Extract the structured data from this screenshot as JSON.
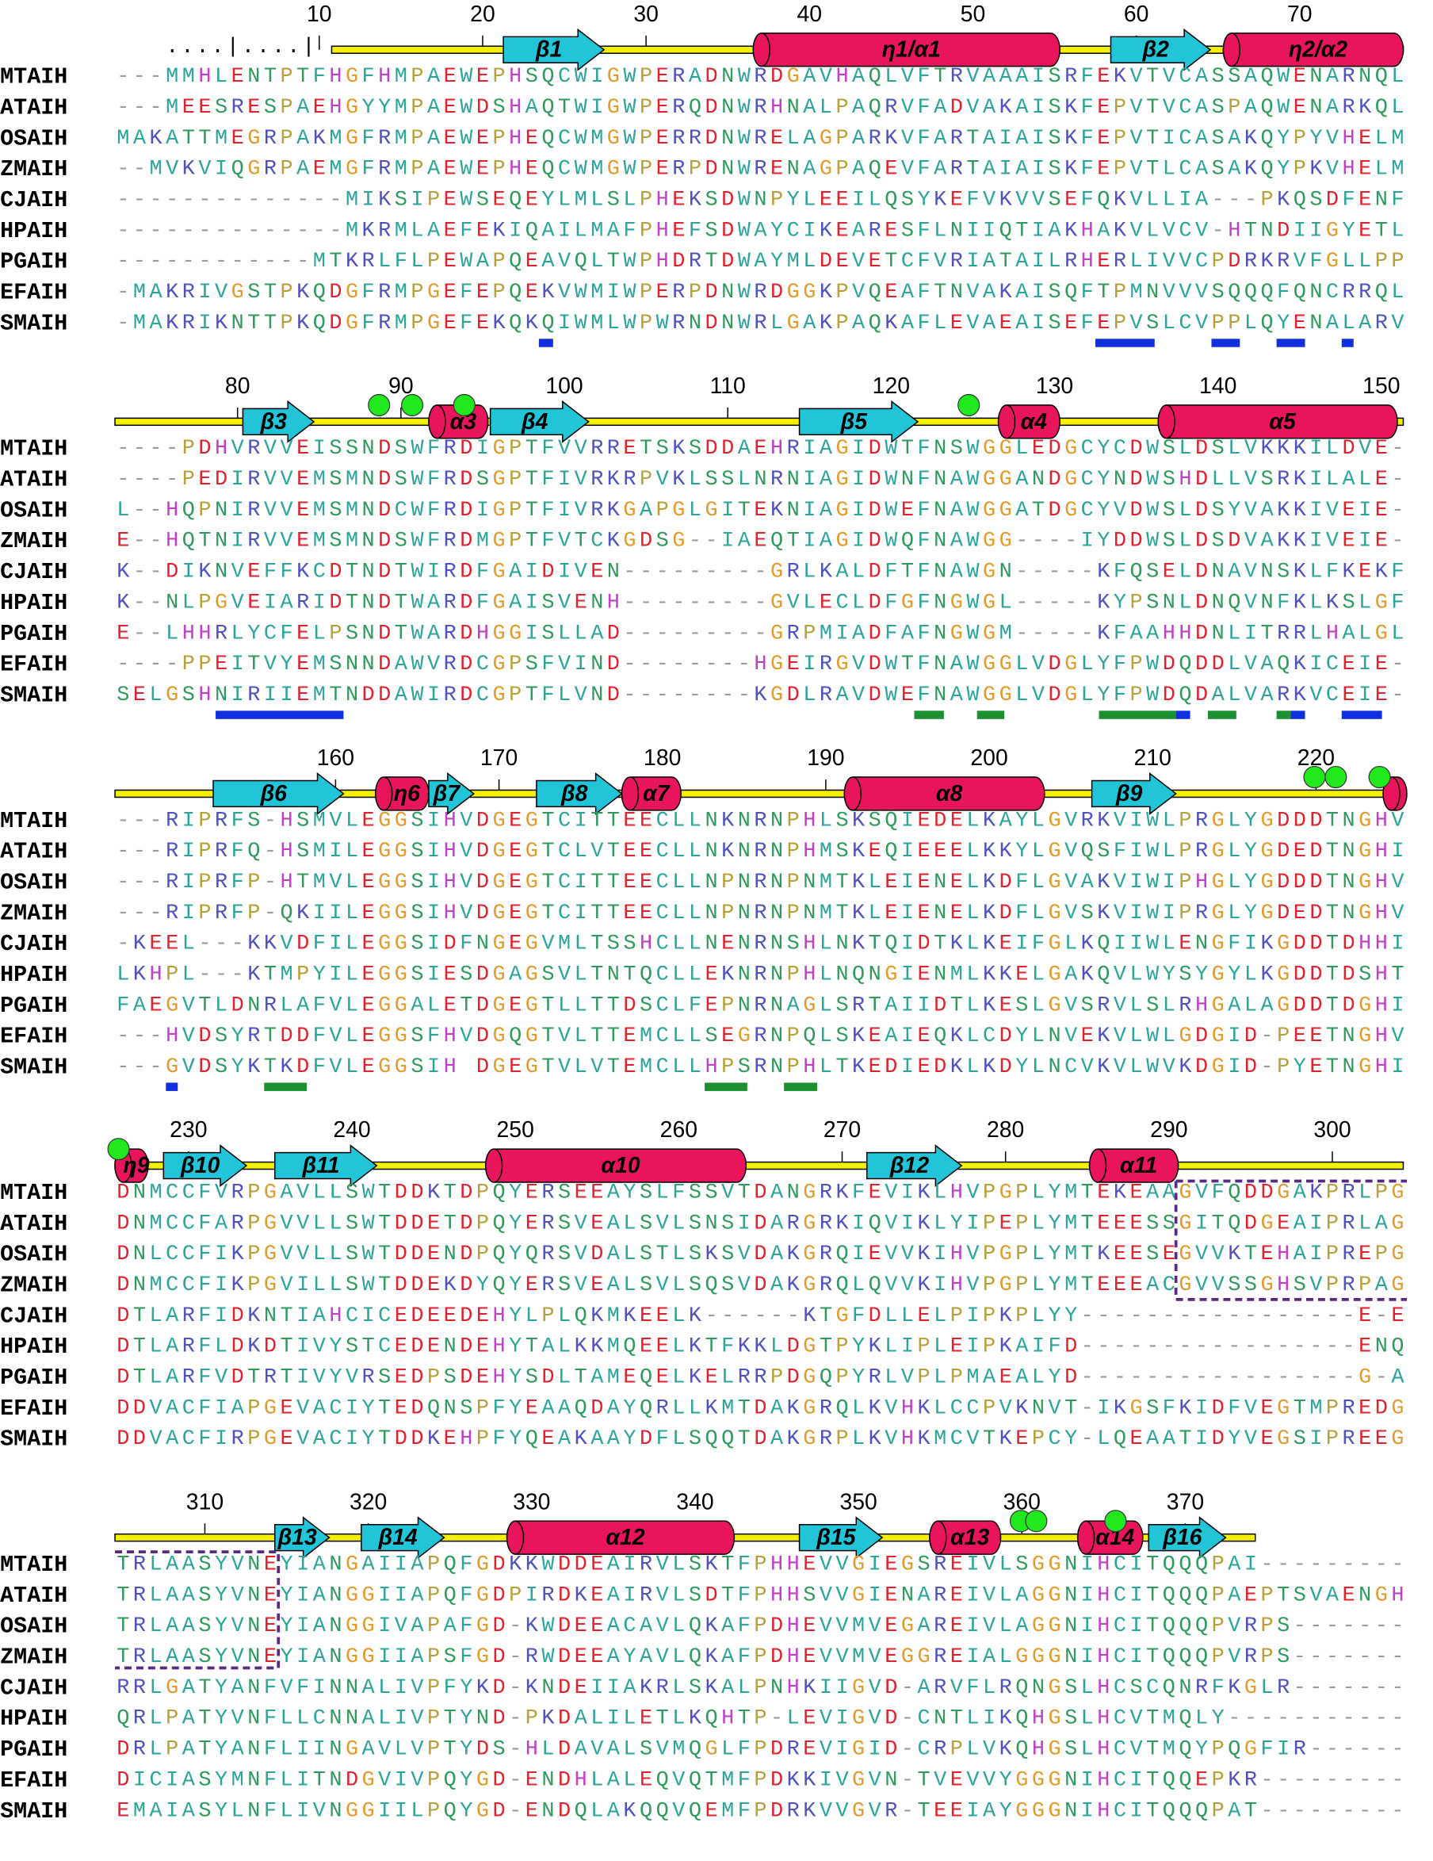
{
  "ruler_marks": "....|....|",
  "names": [
    "MTAIH",
    "ATAIH",
    "OSAIH",
    "ZMAIH",
    "CJAIH",
    "HPAIH",
    "PGAIH",
    "EFAIH",
    "SMAIH"
  ],
  "blocks": [
    {
      "ruler": [
        10,
        20,
        30,
        40,
        50,
        60,
        70
      ],
      "structure": [
        "β1",
        "η1/α1",
        "β2",
        "η2/α2"
      ],
      "sequences": [
        "---MMHLENTPTFHGFHMPAEWEPHSQCWIGWPERADNWRDGAVHAQLVFTRVAAAISRFEKVTVCASSAQWENARNQL",
        "---MEESRESPAEHGYYMPAEWDSHAQTWIGWPERQDNWRHNALPAQRVFADVAKAISKFEPVTVCASPAQWENARKQL",
        "MAKATTMEGRPAKMGFRMPAEWEPHEQCWMGWPERRDNWRELAGPARKVFARTAIAISKFEPVTICASAKQYPYVHELM",
        "--MVKVIQGRPAEMGFRMPAEWEPHEQCWMGWPERPDNWRENAGPAQEVFARTAIAISKFEPVTLCASAKQYPKVHELM",
        "--------------MIKSIPEWSEQEYLMLSLPHEKSDWNPYLEEILQSYKEFVKVVSEFQKVLLIA---PKQSDFENF",
        "--------------MKRMLAEFEKIQAILMAFPHEFSDWAYCIKEARESFLNIIQTIAKHAKVLVCV-HTNDIIGYETL",
        "------------MTKRLFLPEWAPQEAVQLTWPHDRTDWAYMLDEVETCFVRIATAILRHERLIVVCPDRKRVFGLLPP",
        "-MAKRIVGSTPKQDGFRMPGEFEPQEKVWMIWPERPDNWRDGGKPVQEAFTNVAKAISQFTPMNVVVSQQQFQNCRRQL",
        "-MAKRIKNTTPKQDGFRMPGEFEKQKQIWMLWPWRNDNWRLGAKPAQKAFLEVAEAISEFEPVSLCVPPLQYENALARV"
      ]
    },
    {
      "ruler": [
        80,
        90,
        100,
        110,
        120,
        130,
        140,
        150
      ],
      "structure": [
        "β3",
        "α3",
        "β4",
        "β5",
        "α4",
        "α5"
      ],
      "sequences": [
        "----PDHVRVVEISSNDSWFRDIGPTFVVRRETSKSDDAEHRIAGIDWTFNSWGGLEDGCYCDWSLDSLVKKKILDVE-",
        "----PEDIRVVEMSMNDSWFRDSGPTFIVRKRPVKLSSLNRNIAGIDWNFNAWGGANDGCYNDWSHDLLVSRKILALE-",
        "L--HQPNIRVVEMSMNDCWFRDIGPTFIVRKGAPGLGITEKNIAGIDWEFNAWGGATDGCYVDWSLDSYVAKKIVEIE-",
        "E--HQTNIRVVEMSMNDSWFRDMGPTFVTCKGDSG--IAEQTIAGIDWQFNAWGG----IYDDWSLDSDVAKKIVEIE-",
        "K--DIKNVEFFKCDTNDTWIRDFGAIDIVEN---------GRLKALDFTFNAWGN-----KFQSELDNAVNSKLFKEKF",
        "K--NLPGVEIARIDTNDTWARDFGAISVENH---------GVLECLDFGFNGWGL-----KYPSNLDNQVNFKLKSLGF",
        "E--LHHRLYCFELPSNDTWARDHGGISLLAD---------GRPMIADFAFNGWGM-----KFAAHHDNLITRRLHALGL",
        "----PPEITVYEMSNNDAWVRDCGPSFVIND--------HGEIRGVDWTFNAWGGLVDGLYFPWDQDDLVAQKICEIE-",
        "SELGSHNIRIIEMTNDDAWIRDCGPTFLVND--------KGDLRAVDWEFNAWGGLVDGLYFPWDQDALVARKVCEIE-"
      ]
    },
    {
      "ruler": [
        160,
        170,
        180,
        190,
        200,
        210,
        220
      ],
      "structure": [
        "β6",
        "η6",
        "β7",
        "β8",
        "α7",
        "α8",
        "β9"
      ],
      "sequences": [
        "---RIPRFS-HSMVLEGGSIHVDGEGTCITTEECLLNKNRNPHLSKSQIEDELKAYLGVRKVIWLPRGLYGDDDTNGHV",
        "---RIPRFQ-HSMILEGGSIHVDGEGTCLVTEECLLNKNRNPHMSKEQIEEELKKYLGVQSFIWLPRGLYGDEDTNGHI",
        "---RIPRFP-HTMVLEGGSIHVDGEGTCITTEECLLNPNRNPNMTKLEIENELKDFLGVAKVIWIPHGLYGDDDTNGHV",
        "---RIPRFP-QKIILEGGSIHVDGEGTCITTEECLLNPNRNPNMTKLEIENELKDFLGVSKVIWIPRGLYGDEDTNGHV",
        "-KEEL---KKVDFILEGGSIDFNGEGVMLTSSHCLLNENRNSHLNKTQIDTKLKEIFGLKQIIWLENGFIKGDDTDHHI",
        "LKHPL---KTMPYILEGGSIESDGAGSVLTNTQCLLEKNRNPHLNQNGIENMLKKELGAKQVLWYSYGYLKGDDTDSHT",
        "FAEGVTLDNRLAFVLEGGALETDGEGTLLTTDSCLFEPNRNAGLSRTAIIDTLKESLGVSRVLSLRHGALAGDDTDGHI",
        "---HVDSYRTDDFVLEGGSFHVDGQGTVLTTEMCLLSEGRNPQLSKEAIEQKLCDYLNVEKVLWLGDGID-PEETNGHV",
        "---GVDSYKTKDFVLEGGSIH DGEGTVLVTEMCLLHPSRNPHLTKEDIEDKLKDYLNCVKVLWVKDGID-PYETNGHI"
      ]
    },
    {
      "ruler": [
        230,
        240,
        250,
        260,
        270,
        280,
        290,
        300
      ],
      "structure": [
        "η9",
        "β10",
        "β11",
        "α10",
        "β12",
        "α11"
      ],
      "sequences": [
        "DNMCCFVRPGAVLLSWTDDKTDPQYERSEEAYSLFSSVTDANGRKFEVIKLHVPGPLYMTEKEAAGVFQDDGAKPRLPG",
        "DNMCCFARPGVVLLSWTDDETDPQYERSVEALSVLSNSIDARGRKIQVIKLYIPEPLYMTEEESSGITQDGEAIPRLAG",
        "DNLCCFIKPGVVLLSWTDDENDPQYQRSVDALSTLSKSVDAKGRQIEVVKIHVPGPLYMTKEESEGVVKTEHAIPREPG",
        "DNMCCFIKPGVILLSWTDDEKDYQYERSVEALSVLSQSVDAKGRQLQVVKIHVPGPLYMTEEEACGVVSSGHSVPRPAG",
        "DTLARFIDKNTIAHCICEDEEDEHYLPLQKMKEELK------KTGFDLLELPIPKPLYY-----------------E-E",
        "DTLARFLDKDTIVYSTCEDENDEHYTALKKMQEELKTFKKLDGTPYKLIPLEIPKAIFD-----------------ENQ",
        "DTLARFVDTRTIVYVRSEDPSDEHYSDLTAMEQELKELRRPDGQPYRLVPLPMAEALYD-----------------G-A",
        "DDVACFIAPGEVACIYTEDQNSPFYEAAQDAYQRLLKMTDAKGRQLKVHKLCCPVKNVT-IKGSFKIDFVEGTMPREDG",
        "DDVACFIRPGEVACIYTDDKEHPFYQEAKAAYDFLSQQTDAKGRPLKVHKMCVTKEPCY-LQEAATIDYVEGSIPREEG"
      ]
    },
    {
      "ruler": [
        310,
        320,
        330,
        340,
        350,
        360,
        370
      ],
      "structure": [
        "β13",
        "β14",
        "α12",
        "β15",
        "α13",
        "α14",
        "β16"
      ],
      "sequences": [
        "TRLAASYVNEYIANGAIIAPQFGDKKWDDEAIRVLSKTFPHHEVVGIEGSREIVLSGGNIHCITQQQPAI---------",
        "TRLAASYVNEYIANGGIIAPQFGDPIRDKEAIRVLSDTFPHHSVVGIENAREIVLAGGNIHCITQQQPAEPTSVAENGH",
        "TRLAASYVNEYIANGGIVAPAFGD-KWDEEACAVLQKAFPDHEVVMVEGAREIVLAGGNIHCITQQQPVRPS-------",
        "TRLAASYVNEYIANGGIIAPSFGD-RWDEEAYAVLQKAFPDHEVVMVEGGREIALGGGNIHCITQQQPVRPS-------",
        "RRLGATYANFVFINNALIVPFYKD-KNDEIIAKRLSKALPNHKIIGVD-ARVFLRQNGSLHCSCQNRFKGLR-------",
        "QRLPATYVNFLLCNNALIVPTYND-PKDALILETLKQHTP-LEVIGVD-CNTLIKQHGSLHCVTMQLY-----------",
        "DRLPATYANFLIINGAVLVPTYDS-HLDAVALSVMQGLFPDREVIGID-CRPLVKQHGSLHCVTMQYPQGFIR------",
        "DICIASYMNFLITNDGVIVPQYGD-ENDHLALEQVQTMFPDKKIVGVN-TVEVVYGGGNIHCITQQEPKR---------",
        "EMAIASYLNFLIVNGGIILPQYGD-ENDQLAKQQVQEMFPDRKVVGVR-TEEIAYGGGNIHCITQQQPAT---------"
      ]
    }
  ]
}
